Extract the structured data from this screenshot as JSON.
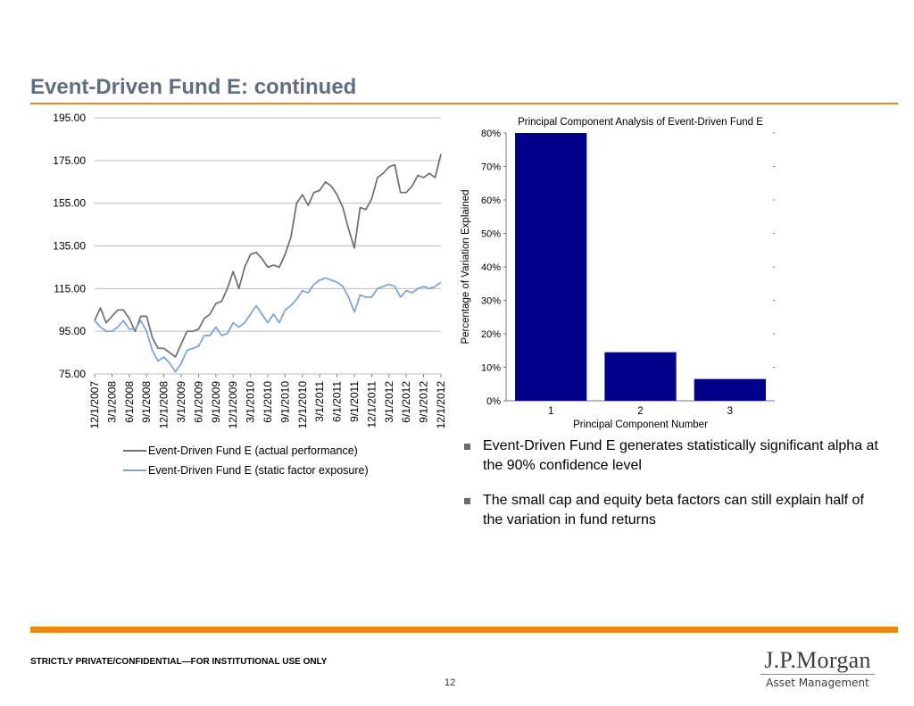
{
  "page": {
    "title": "Event-Driven Fund E: continued",
    "footer": "STRICTLY PRIVATE/CONFIDENTIAL—FOR INSTITUTIONAL USE ONLY",
    "page_number": "12",
    "logo_main": "J.P.Morgan",
    "logo_sub": "Asset Management",
    "accent_color": "#e8891a"
  },
  "bullets": [
    "Event-Driven Fund E generates statistically significant alpha at the 90% confidence level",
    "The small cap and equity beta factors can still explain half of the variation in fund returns"
  ],
  "legend": [
    {
      "label": "Event-Driven Fund E (actual performance)",
      "color": "#6e6e6e"
    },
    {
      "label": "Event-Driven Fund E (static factor exposure)",
      "color": "#7aa3d8"
    }
  ],
  "chart_data": [
    {
      "type": "line",
      "title": "",
      "xlabel": "",
      "ylabel": "",
      "ylim": [
        75,
        195
      ],
      "yticks": [
        "75.00",
        "95.00",
        "115.00",
        "135.00",
        "155.00",
        "175.00",
        "195.00"
      ],
      "x_tick_labels": [
        "12/1/2007",
        "3/1/2008",
        "6/1/2008",
        "9/1/2008",
        "12/1/2008",
        "3/1/2009",
        "6/1/2009",
        "9/1/2009",
        "12/1/2009",
        "3/1/2010",
        "6/1/2010",
        "9/1/2010",
        "12/1/2010",
        "3/1/2011",
        "6/1/2011",
        "9/1/2011",
        "12/1/2011",
        "3/1/2012",
        "6/1/2012",
        "9/1/2012",
        "12/1/2012"
      ],
      "x_start": "12/1/2007",
      "x_end": "12/1/2012",
      "grid": "horizontal",
      "legend_position": "bottom",
      "series": [
        {
          "name": "Event-Driven Fund E (actual performance)",
          "color": "#6e6e6e",
          "values": [
            100,
            106,
            99,
            102,
            105,
            105,
            101,
            95,
            102,
            102,
            92,
            87,
            87,
            85,
            83,
            89,
            95,
            95,
            96,
            101,
            103,
            108,
            109,
            115,
            123,
            115,
            125,
            131,
            132,
            129,
            125,
            126,
            125,
            131,
            139,
            155,
            159,
            154,
            160,
            161,
            165,
            163,
            159,
            153,
            143,
            134,
            153,
            152,
            157,
            167,
            169,
            172,
            173,
            160,
            160,
            163,
            168,
            167,
            169,
            167,
            178
          ]
        },
        {
          "name": "Event-Driven Fund E (static factor exposure)",
          "color": "#7aa3d8",
          "values": [
            100,
            97,
            95,
            95,
            97,
            100,
            96,
            96,
            100,
            95,
            86,
            81,
            83,
            80,
            76,
            80,
            86,
            87,
            88,
            93,
            93,
            97,
            93,
            94,
            99,
            97,
            99,
            103,
            107,
            103,
            99,
            103,
            99,
            105,
            107,
            110,
            114,
            113,
            117,
            119,
            120,
            119,
            118,
            116,
            111,
            104,
            112,
            111,
            111,
            115,
            116,
            117,
            116,
            111,
            114,
            113,
            115,
            116,
            115,
            116,
            118
          ]
        }
      ]
    },
    {
      "type": "bar",
      "title": "Principal Component Analysis of Event-Driven Fund E",
      "xlabel": "Principal Component Number",
      "ylabel": "Percentage of Variation Explained",
      "categories": [
        "1",
        "2",
        "3"
      ],
      "values": [
        80,
        14.5,
        6.5
      ],
      "ylim": [
        0,
        80
      ],
      "yticks": [
        "0%",
        "10%",
        "20%",
        "30%",
        "40%",
        "50%",
        "60%",
        "70%",
        "80%"
      ],
      "bar_color": "#00008b",
      "grid": "none",
      "legend_position": "none"
    }
  ]
}
